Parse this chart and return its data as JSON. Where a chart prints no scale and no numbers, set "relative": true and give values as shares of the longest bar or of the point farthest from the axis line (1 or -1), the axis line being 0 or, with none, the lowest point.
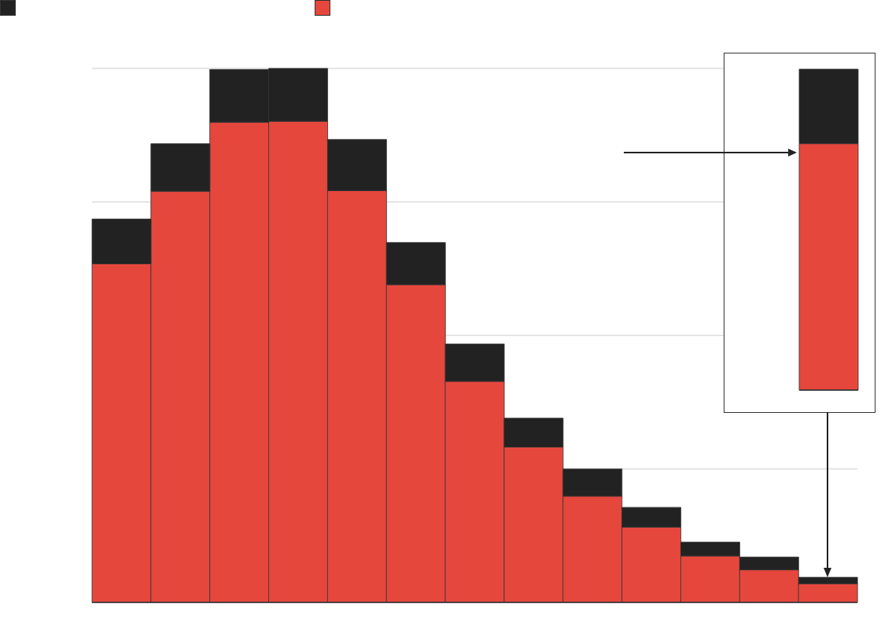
{
  "chart_data": [
    {
      "type": "bar",
      "stacked": true,
      "relative": true,
      "categories": [
        null,
        null,
        null,
        null,
        null,
        null,
        null,
        null,
        null,
        null,
        null,
        null,
        null
      ],
      "series": [
        {
          "color": "#e5473d",
          "values": [
            0.634,
            0.77,
            0.899,
            0.901,
            0.771,
            0.595,
            0.414,
            0.291,
            0.199,
            0.141,
            0.087,
            0.061,
            0.035
          ]
        },
        {
          "color": "#222222",
          "values": [
            0.084,
            0.089,
            0.099,
            0.099,
            0.096,
            0.079,
            0.07,
            0.054,
            0.051,
            0.037,
            0.026,
            0.024,
            0.012
          ]
        }
      ],
      "grid": "y",
      "tick_labels": false
    },
    {
      "type": "bar",
      "stacked": true,
      "relative": true,
      "categories": [
        null
      ],
      "series": [
        {
          "color": "#e5473d",
          "values": [
            0.768
          ]
        },
        {
          "color": "#222222",
          "values": [
            0.232
          ]
        }
      ],
      "grid": "y",
      "tick_labels": false
    }
  ]
}
